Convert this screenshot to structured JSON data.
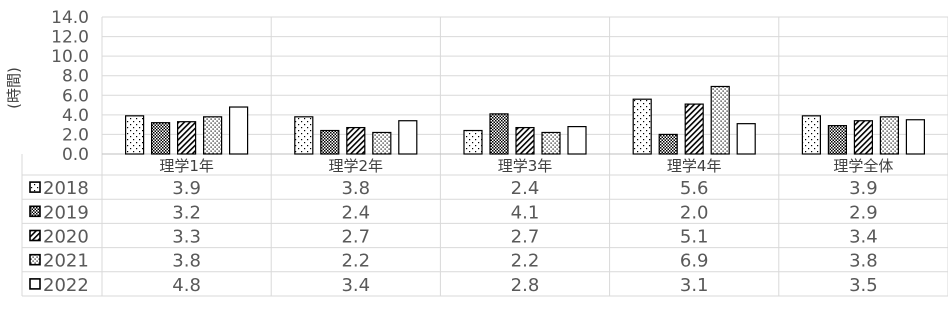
{
  "chart_data": {
    "type": "bar",
    "ylabel": "(時間)",
    "ylim": [
      0,
      14
    ],
    "yticks": [
      "14.0",
      "12.0",
      "10.0",
      "8.0",
      "6.0",
      "4.0",
      "2.0",
      "0.0"
    ],
    "categories": [
      "理学1年",
      "理学2年",
      "理学3年",
      "理学4年",
      "理学全体"
    ],
    "series": [
      {
        "name": "2018",
        "pattern": "dots-sparse",
        "values": [
          3.9,
          3.8,
          2.4,
          5.6,
          3.9
        ],
        "labels": [
          "3.9",
          "3.8",
          "2.4",
          "5.6",
          "3.9"
        ]
      },
      {
        "name": "2019",
        "pattern": "dots-dense",
        "values": [
          3.2,
          2.4,
          4.1,
          2.0,
          2.9
        ],
        "labels": [
          "3.2",
          "2.4",
          "4.1",
          "2.0",
          "2.9"
        ]
      },
      {
        "name": "2020",
        "pattern": "diagonal-stripes",
        "values": [
          3.3,
          2.7,
          2.7,
          5.1,
          3.4
        ],
        "labels": [
          "3.3",
          "2.7",
          "2.7",
          "5.1",
          "3.4"
        ]
      },
      {
        "name": "2021",
        "pattern": "dots-medium",
        "values": [
          3.8,
          2.2,
          2.2,
          6.9,
          3.8
        ],
        "labels": [
          "3.8",
          "2.2",
          "2.2",
          "6.9",
          "3.8"
        ]
      },
      {
        "name": "2022",
        "pattern": "solid-white",
        "values": [
          4.8,
          3.4,
          2.8,
          3.1,
          3.5
        ],
        "labels": [
          "4.8",
          "3.4",
          "2.8",
          "3.1",
          "3.5"
        ]
      }
    ],
    "grid": true,
    "legend": "data-table",
    "colors": {
      "bar_stroke": "#000000",
      "grid": "#d9d9d9",
      "text": "#595959"
    }
  }
}
